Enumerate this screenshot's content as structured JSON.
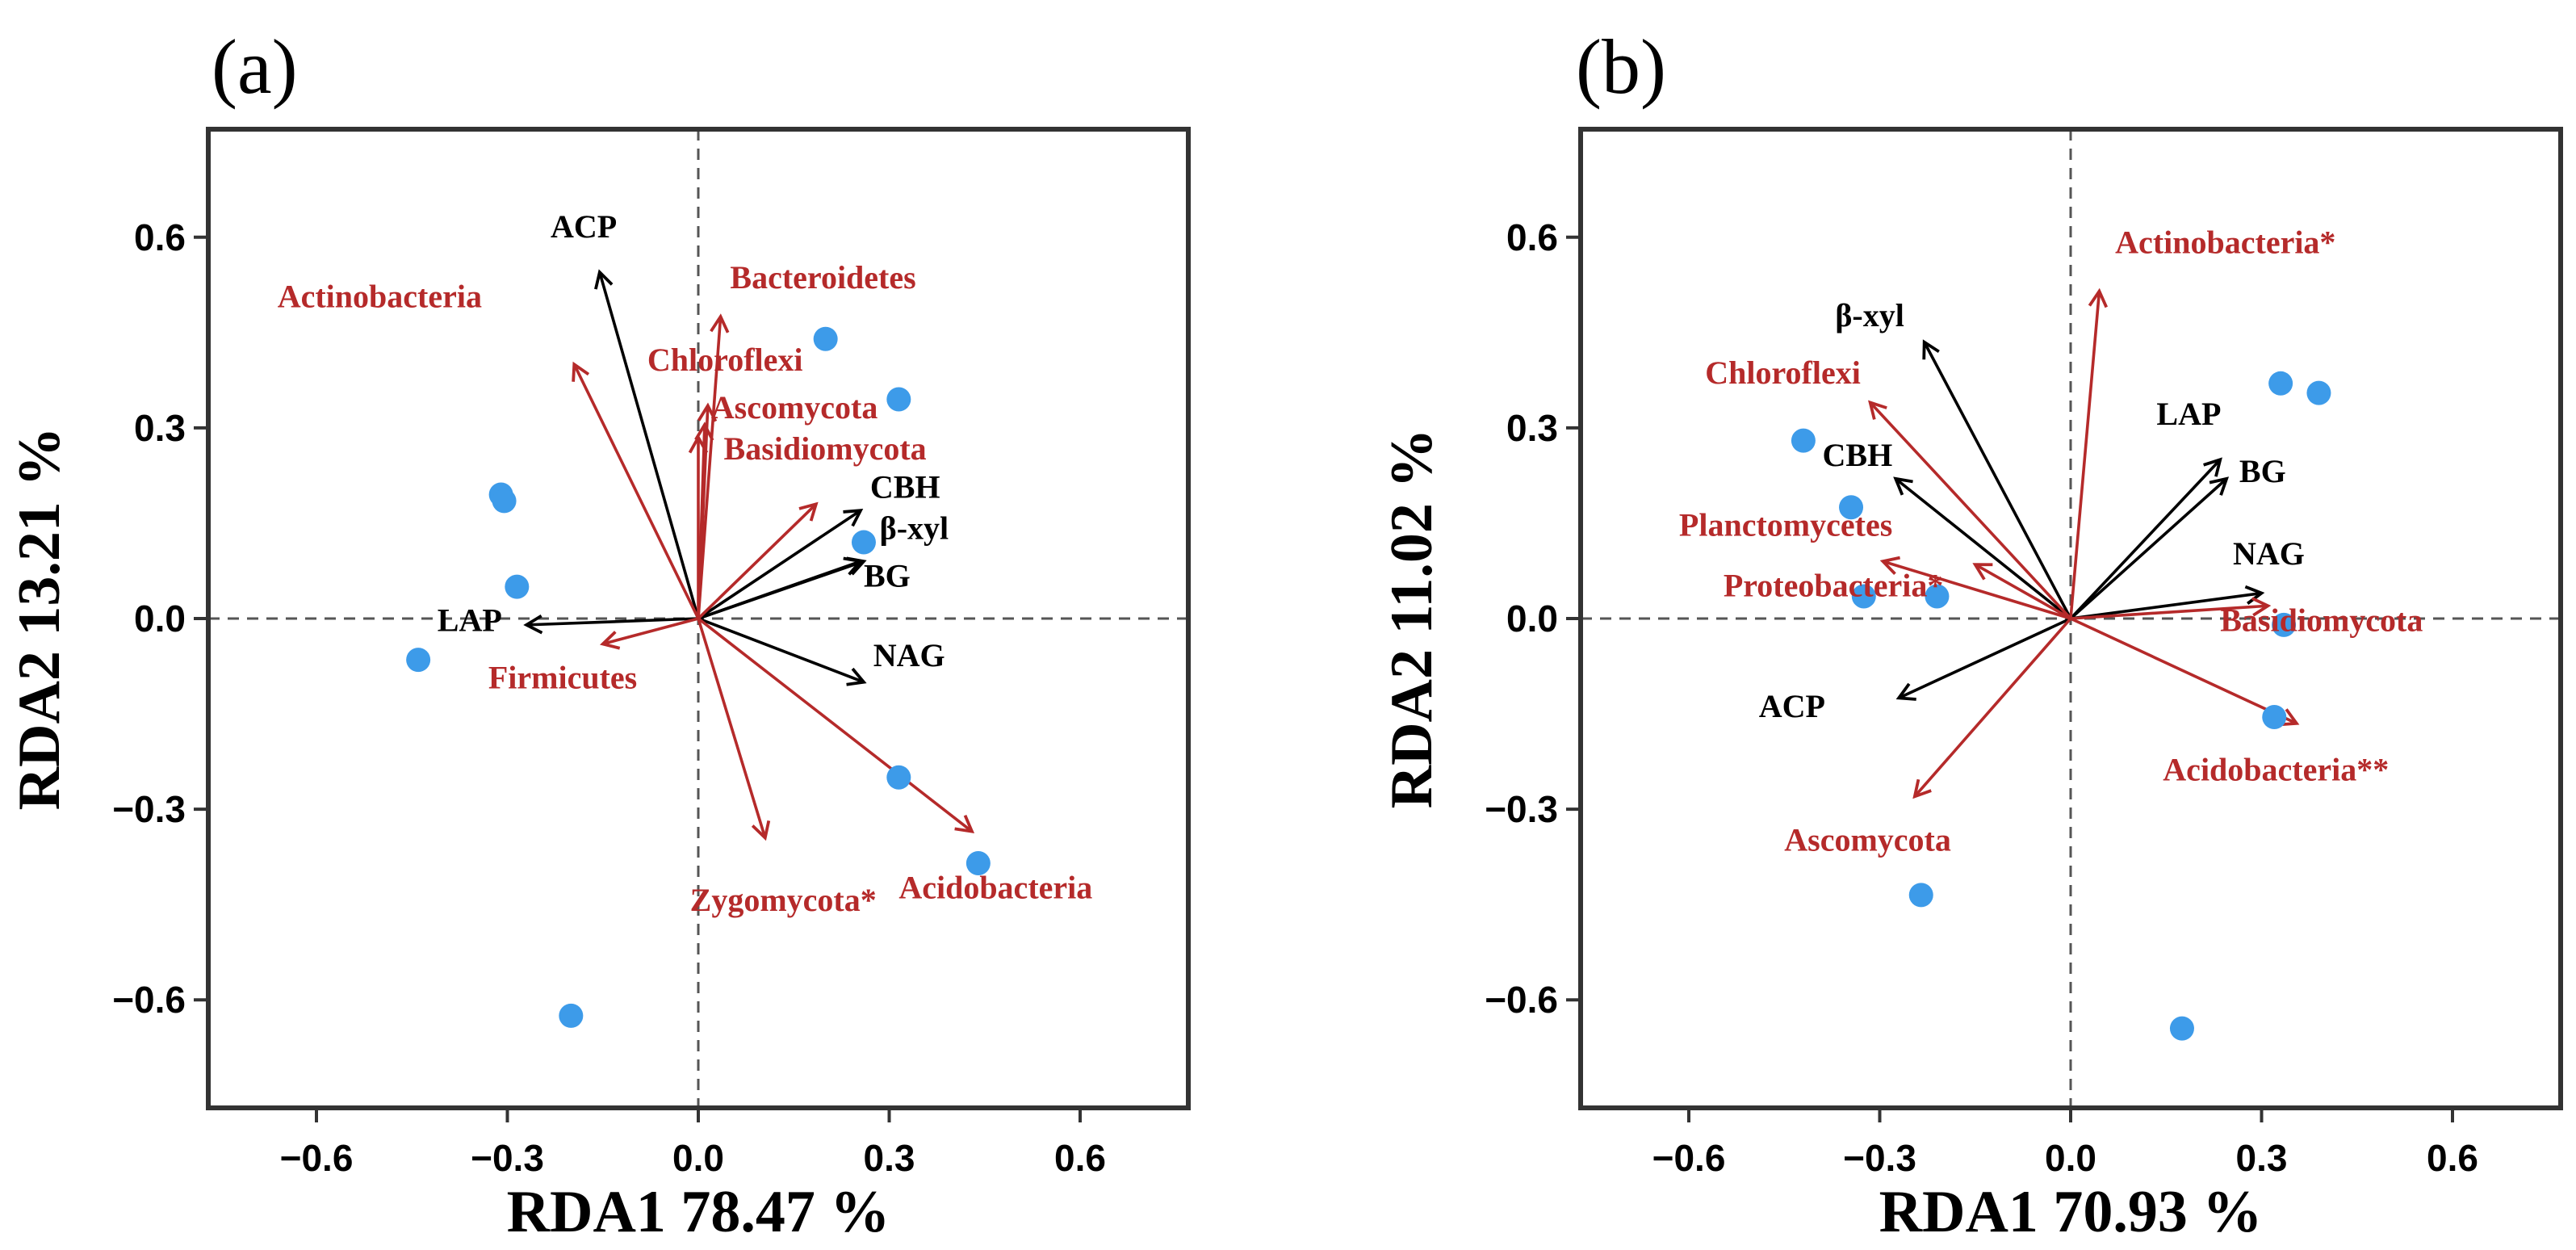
{
  "colors": {
    "taxa": "#b52a2a",
    "enzyme": "#000000",
    "point": "#3d9be9",
    "frame": "#333333",
    "zero": "#555555"
  },
  "chart_data": [
    {
      "type": "scatter",
      "panel_label": "(a)",
      "xlabel": "RDA1 78.47  %",
      "ylabel": "RDA2 13.21  %",
      "xlim": [
        -0.77,
        0.77
      ],
      "ylim": [
        -0.77,
        0.77
      ],
      "xticks": [
        {
          "v": -0.6,
          "t": "−0.6"
        },
        {
          "v": -0.3,
          "t": "−0.3"
        },
        {
          "v": 0.0,
          "t": "0.0"
        },
        {
          "v": 0.3,
          "t": "0.3"
        },
        {
          "v": 0.6,
          "t": "0.6"
        }
      ],
      "yticks": [
        {
          "v": 0.6,
          "t": "0.6"
        },
        {
          "v": 0.3,
          "t": "0.3"
        },
        {
          "v": 0.0,
          "t": "0.0"
        },
        {
          "v": -0.3,
          "t": "−0.3"
        },
        {
          "v": -0.6,
          "t": "−0.6"
        }
      ],
      "points": [
        {
          "x": 0.2,
          "y": 0.44
        },
        {
          "x": 0.315,
          "y": 0.345
        },
        {
          "x": -0.31,
          "y": 0.195
        },
        {
          "x": -0.305,
          "y": 0.185
        },
        {
          "x": 0.26,
          "y": 0.12
        },
        {
          "x": -0.285,
          "y": 0.05
        },
        {
          "x": -0.44,
          "y": -0.065
        },
        {
          "x": 0.315,
          "y": -0.25
        },
        {
          "x": 0.44,
          "y": -0.385
        },
        {
          "x": -0.2,
          "y": -0.625
        }
      ],
      "vectors": [
        {
          "name": "ACP",
          "group": "enzyme",
          "x": -0.155,
          "y": 0.545,
          "lx": -0.18,
          "ly": 0.6,
          "anchor": "middle"
        },
        {
          "name": "CBH",
          "group": "enzyme",
          "x": 0.255,
          "y": 0.17,
          "lx": 0.27,
          "ly": 0.19,
          "anchor": "start"
        },
        {
          "name": "β-xyl",
          "group": "enzyme",
          "x": 0.26,
          "y": 0.09,
          "lx": 0.285,
          "ly": 0.125,
          "anchor": "start"
        },
        {
          "name": "BG",
          "group": "enzyme",
          "x": 0.255,
          "y": 0.09,
          "lx": 0.26,
          "ly": 0.05,
          "anchor": "start"
        },
        {
          "name": "NAG",
          "group": "enzyme",
          "x": 0.26,
          "y": -0.1,
          "lx": 0.275,
          "ly": -0.075,
          "anchor": "start"
        },
        {
          "name": "LAP",
          "group": "enzyme",
          "x": -0.27,
          "y": -0.01,
          "lx": -0.41,
          "ly": -0.02,
          "anchor": "start"
        },
        {
          "name": "Actinobacteria",
          "group": "taxa",
          "x": -0.195,
          "y": 0.4,
          "lx": -0.34,
          "ly": 0.49,
          "anchor": "end"
        },
        {
          "name": "Bacteroidetes",
          "group": "taxa",
          "x": 0.035,
          "y": 0.475,
          "lx": 0.05,
          "ly": 0.52,
          "anchor": "start"
        },
        {
          "name": "Chloroflexi",
          "group": "taxa",
          "x": 0.015,
          "y": 0.335,
          "lx": -0.08,
          "ly": 0.39,
          "anchor": "start"
        },
        {
          "name": "Ascomycota",
          "group": "taxa",
          "x": 0.01,
          "y": 0.305,
          "lx": 0.02,
          "ly": 0.315,
          "anchor": "start"
        },
        {
          "name": "Basidiomycota",
          "group": "taxa",
          "x": 0.0,
          "y": 0.285,
          "lx": 0.04,
          "ly": 0.25,
          "anchor": "start"
        },
        {
          "name": "Firmicutes",
          "group": "taxa",
          "x": -0.15,
          "y": -0.04,
          "lx": -0.33,
          "ly": -0.11,
          "anchor": "start"
        },
        {
          "name": "Zygomycota*",
          "group": "taxa",
          "x": 0.105,
          "y": -0.345,
          "lx": 0.28,
          "ly": -0.46,
          "anchor": "end"
        },
        {
          "name": "Acidobacteria",
          "group": "taxa",
          "x": 0.43,
          "y": -0.335,
          "lx": 0.315,
          "ly": -0.44,
          "anchor": "start"
        },
        {
          "name": "",
          "group": "taxa",
          "x": 0.185,
          "y": 0.18,
          "lx": 0.185,
          "ly": 0.18,
          "anchor": "start"
        }
      ]
    },
    {
      "type": "scatter",
      "panel_label": "(b)",
      "xlabel": "RDA1 70.93  %",
      "ylabel": "RDA2 11.02  %",
      "xlim": [
        -0.77,
        0.77
      ],
      "ylim": [
        -0.77,
        0.77
      ],
      "xticks": [
        {
          "v": -0.6,
          "t": "−0.6"
        },
        {
          "v": -0.3,
          "t": "−0.3"
        },
        {
          "v": 0.0,
          "t": "0.0"
        },
        {
          "v": 0.3,
          "t": "0.3"
        },
        {
          "v": 0.6,
          "t": "0.6"
        }
      ],
      "yticks": [
        {
          "v": 0.6,
          "t": "0.6"
        },
        {
          "v": 0.3,
          "t": "0.3"
        },
        {
          "v": 0.0,
          "t": "0.0"
        },
        {
          "v": -0.3,
          "t": "−0.3"
        },
        {
          "v": -0.6,
          "t": "−0.6"
        }
      ],
      "points": [
        {
          "x": 0.33,
          "y": 0.37
        },
        {
          "x": 0.39,
          "y": 0.355
        },
        {
          "x": -0.42,
          "y": 0.28
        },
        {
          "x": -0.345,
          "y": 0.175
        },
        {
          "x": -0.325,
          "y": 0.035
        },
        {
          "x": -0.21,
          "y": 0.035
        },
        {
          "x": 0.335,
          "y": -0.01
        },
        {
          "x": 0.32,
          "y": -0.155
        },
        {
          "x": -0.235,
          "y": -0.435
        },
        {
          "x": 0.175,
          "y": -0.645
        }
      ],
      "vectors": [
        {
          "name": "β-xyl",
          "group": "enzyme",
          "x": -0.23,
          "y": 0.435,
          "lx": -0.37,
          "ly": 0.46,
          "anchor": "start"
        },
        {
          "name": "CBH",
          "group": "enzyme",
          "x": -0.275,
          "y": 0.22,
          "lx": -0.39,
          "ly": 0.24,
          "anchor": "start"
        },
        {
          "name": "ACP",
          "group": "enzyme",
          "x": -0.27,
          "y": -0.125,
          "lx": -0.49,
          "ly": -0.155,
          "anchor": "start"
        },
        {
          "name": "LAP",
          "group": "enzyme",
          "x": 0.235,
          "y": 0.25,
          "lx": 0.135,
          "ly": 0.305,
          "anchor": "start"
        },
        {
          "name": "BG",
          "group": "enzyme",
          "x": 0.245,
          "y": 0.22,
          "lx": 0.265,
          "ly": 0.215,
          "anchor": "start"
        },
        {
          "name": "NAG",
          "group": "enzyme",
          "x": 0.3,
          "y": 0.04,
          "lx": 0.255,
          "ly": 0.085,
          "anchor": "start"
        },
        {
          "name": "Actinobacteria*",
          "group": "taxa",
          "x": 0.045,
          "y": 0.515,
          "lx": 0.07,
          "ly": 0.575,
          "anchor": "start"
        },
        {
          "name": "Chloroflexi",
          "group": "taxa",
          "x": -0.315,
          "y": 0.34,
          "lx": -0.33,
          "ly": 0.37,
          "anchor": "end"
        },
        {
          "name": "Planctomycetes",
          "group": "taxa",
          "x": -0.295,
          "y": 0.09,
          "lx": -0.28,
          "ly": 0.13,
          "anchor": "end"
        },
        {
          "name": "Proteobacteria*",
          "group": "taxa",
          "x": -0.15,
          "y": 0.085,
          "lx": -0.2,
          "ly": 0.035,
          "anchor": "end"
        },
        {
          "name": "Basidiomycota",
          "group": "taxa",
          "x": 0.31,
          "y": 0.02,
          "lx": 0.235,
          "ly": -0.02,
          "anchor": "start"
        },
        {
          "name": "Acidobacteria**",
          "group": "taxa",
          "x": 0.355,
          "y": -0.165,
          "lx": 0.145,
          "ly": -0.255,
          "anchor": "start"
        },
        {
          "name": "Ascomycota",
          "group": "taxa",
          "x": -0.245,
          "y": -0.28,
          "lx": -0.45,
          "ly": -0.365,
          "anchor": "start"
        }
      ]
    }
  ]
}
